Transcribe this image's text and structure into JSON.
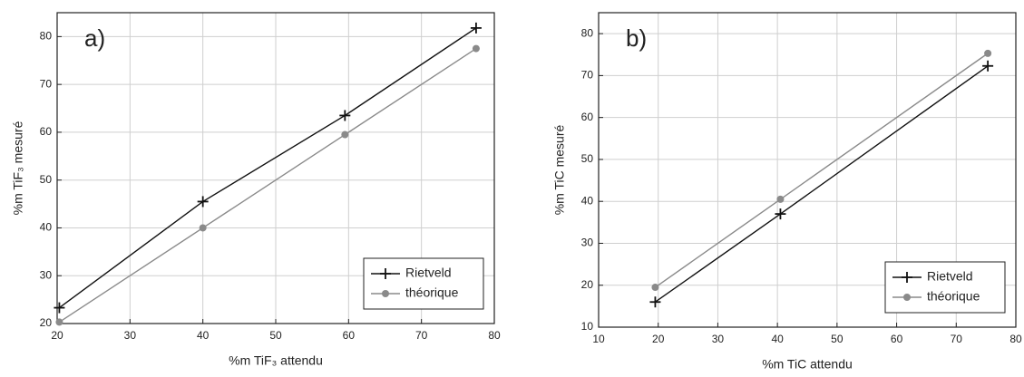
{
  "chart_data": [
    {
      "type": "line",
      "panel_label": "a)",
      "x_label": "%m TiF₃ attendu",
      "y_label": "%m TiF₃ mesuré",
      "xlim": [
        20,
        80
      ],
      "xticks": [
        20,
        30,
        40,
        50,
        60,
        70,
        80
      ],
      "ylim": [
        20,
        85
      ],
      "yticks": [
        20,
        30,
        40,
        50,
        60,
        70,
        80
      ],
      "grid": true,
      "legend": "lower right",
      "series": [
        {
          "name": "Rietveld",
          "color": "#111111",
          "marker": "plus",
          "x": [
            20.3,
            40,
            59.5,
            77.5
          ],
          "values": [
            23.3,
            45.5,
            63.5,
            81.8
          ]
        },
        {
          "name": "théorique",
          "color": "#8a8a8a",
          "marker": "circle",
          "x": [
            20.3,
            40,
            59.5,
            77.5
          ],
          "values": [
            20.3,
            40,
            59.5,
            77.5
          ]
        }
      ]
    },
    {
      "type": "line",
      "panel_label": "b)",
      "x_label": "%m TiC attendu",
      "y_label": "%m TiC mesuré",
      "xlim": [
        10,
        80
      ],
      "xticks": [
        10,
        20,
        30,
        40,
        50,
        60,
        70,
        80
      ],
      "ylim": [
        10,
        85
      ],
      "yticks": [
        10,
        20,
        30,
        40,
        50,
        60,
        70,
        80
      ],
      "grid": true,
      "legend": "lower right",
      "series": [
        {
          "name": "Rietveld",
          "color": "#111111",
          "marker": "plus",
          "x": [
            19.5,
            40.5,
            75.3
          ],
          "values": [
            16,
            37,
            72.3
          ]
        },
        {
          "name": "théorique",
          "color": "#8a8a8a",
          "marker": "circle",
          "x": [
            19.5,
            40.5,
            75.3
          ],
          "values": [
            19.5,
            40.5,
            75.3
          ]
        }
      ]
    }
  ]
}
